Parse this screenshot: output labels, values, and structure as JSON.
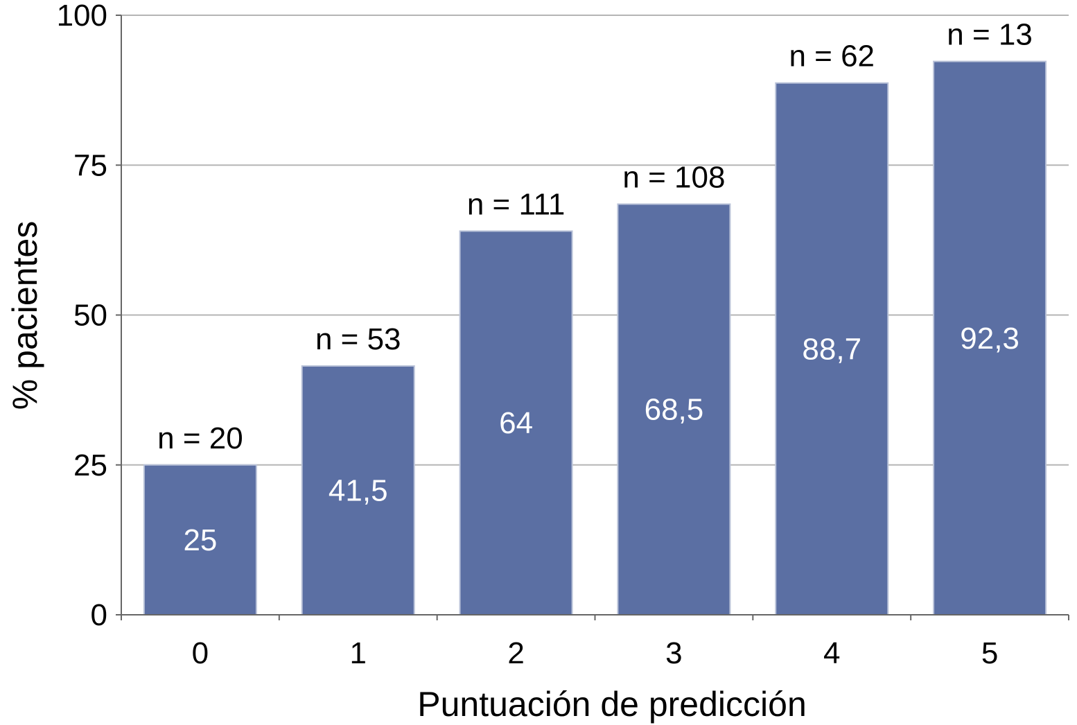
{
  "chart_data": {
    "type": "bar",
    "title": "",
    "xlabel": "Puntuación de predicción",
    "ylabel": "% pacientes",
    "categories": [
      "0",
      "1",
      "2",
      "3",
      "4",
      "5"
    ],
    "values": [
      25,
      41.5,
      64,
      68.5,
      88.7,
      92.3
    ],
    "value_labels": [
      "25",
      "41,5",
      "64",
      "68,5",
      "88,7",
      "92,3"
    ],
    "n_labels": [
      "n = 20",
      "n = 53",
      "n = 111",
      "n = 108",
      "n = 62",
      "n = 13"
    ],
    "yticks": [
      "0",
      "25",
      "50",
      "75",
      "100"
    ],
    "ylim": [
      0,
      100
    ],
    "grid": true,
    "legend": "none",
    "colors": {
      "bar": "#5b6fa3",
      "bar_edge": "#b9c2d8",
      "grid": "#b5b5b5",
      "axis": "#666666"
    }
  }
}
